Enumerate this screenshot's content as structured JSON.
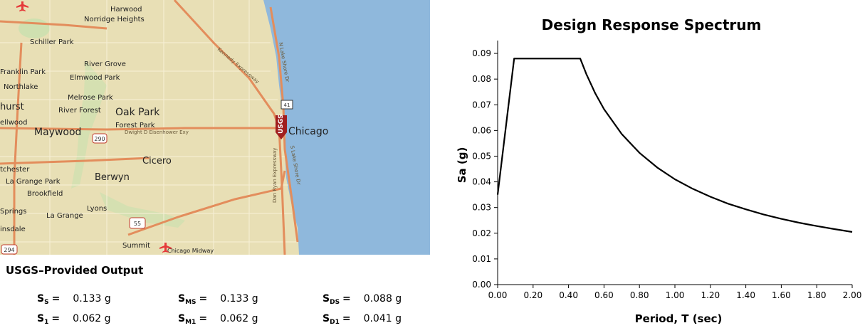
{
  "map": {
    "badge": "USGS",
    "places": [
      {
        "name": "Harwood"
      },
      {
        "name": "Norridge Heights"
      },
      {
        "name": "Schiller Park"
      },
      {
        "name": "River Grove"
      },
      {
        "name": "Franklin Park"
      },
      {
        "name": "Elmwood Park"
      },
      {
        "name": "Northlake"
      },
      {
        "name": "Melrose Park"
      },
      {
        "name": "hurst"
      },
      {
        "name": "River Forest"
      },
      {
        "name": "Oak Park"
      },
      {
        "name": "ellwood"
      },
      {
        "name": "Forest Park"
      },
      {
        "name": "Maywood"
      },
      {
        "name": "Chicago"
      },
      {
        "name": "Cicero"
      },
      {
        "name": "tchester"
      },
      {
        "name": "Berwyn"
      },
      {
        "name": "La Grange Park"
      },
      {
        "name": "Brookfield"
      },
      {
        "name": "Springs"
      },
      {
        "name": "La Grange"
      },
      {
        "name": "Lyons"
      },
      {
        "name": "insdale"
      },
      {
        "name": "Summit"
      },
      {
        "name": "Chicago Midway"
      }
    ],
    "shields": [
      {
        "label": "290"
      },
      {
        "label": "55"
      },
      {
        "label": "41"
      },
      {
        "label": "294"
      }
    ],
    "road_labels": [
      "Dwight D Eisenhower Exy",
      "Kennedy Expressway",
      "N Lake Shore Dr",
      "S Lake Shore Dr",
      "Dan Ryan Expressway"
    ]
  },
  "output": {
    "title": "USGS–Provided Output",
    "params": [
      {
        "sym": "S",
        "sub": "S",
        "eq": "=",
        "value": "0.133 g"
      },
      {
        "sym": "S",
        "sub": "MS",
        "eq": "=",
        "value": "0.133 g"
      },
      {
        "sym": "S",
        "sub": "DS",
        "eq": "=",
        "value": "0.088 g"
      },
      {
        "sym": "S",
        "sub": "1",
        "eq": "=",
        "value": "0.062 g"
      },
      {
        "sym": "S",
        "sub": "M1",
        "eq": "=",
        "value": "0.062 g"
      },
      {
        "sym": "S",
        "sub": "D1",
        "eq": "=",
        "value": "0.041 g"
      }
    ]
  },
  "chart_data": {
    "type": "line",
    "title": "Design Response Spectrum",
    "xlabel": "Period, T (sec)",
    "ylabel": "Sa (g)",
    "xlim": [
      0,
      2.0
    ],
    "ylim": [
      0,
      0.095
    ],
    "xticks": [
      "0.00",
      "0.20",
      "0.40",
      "0.60",
      "0.80",
      "1.00",
      "1.20",
      "1.40",
      "1.60",
      "1.80",
      "2.00"
    ],
    "yticks": [
      "0.00",
      "0.01",
      "0.02",
      "0.03",
      "0.04",
      "0.05",
      "0.06",
      "0.07",
      "0.08",
      "0.09"
    ],
    "grid": false,
    "x": [
      0.0,
      0.093,
      0.466,
      0.5,
      0.55,
      0.6,
      0.7,
      0.8,
      0.9,
      1.0,
      1.1,
      1.2,
      1.3,
      1.4,
      1.5,
      1.6,
      1.7,
      1.8,
      1.9,
      2.0
    ],
    "y": [
      0.035,
      0.088,
      0.088,
      0.082,
      0.0745,
      0.0683,
      0.0586,
      0.0513,
      0.0456,
      0.041,
      0.0373,
      0.0342,
      0.0315,
      0.0293,
      0.0273,
      0.0256,
      0.0241,
      0.0228,
      0.0216,
      0.0205
    ]
  },
  "colors": {
    "water": "#8fb8dc",
    "land": "#e8dfb5",
    "highway": "#e38d5c",
    "marker": "#a01e1e"
  }
}
